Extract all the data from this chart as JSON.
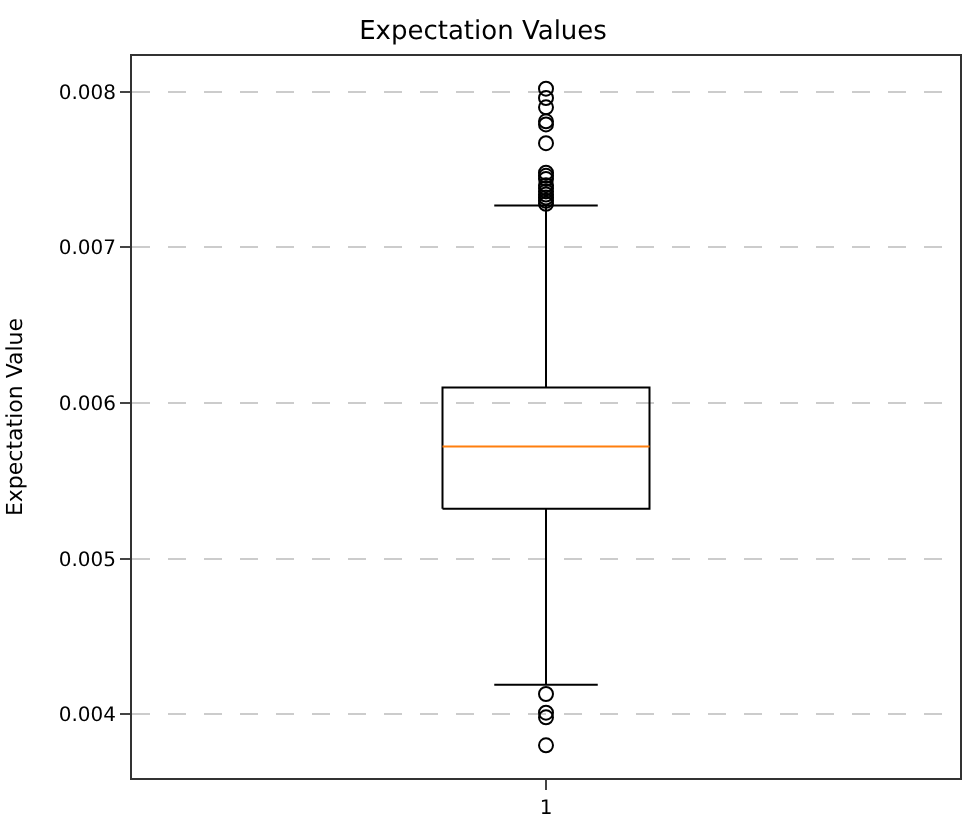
{
  "chart_data": {
    "type": "box",
    "title": "Expectation Values",
    "ylabel": "Expectation Value",
    "categories": [
      "1"
    ],
    "boxes": [
      {
        "low": 0.00419,
        "q1": 0.00532,
        "median": 0.00572,
        "q3": 0.0061,
        "high": 0.00727,
        "outliers": [
          0.00802,
          0.00796,
          0.0079,
          0.00781,
          0.00779,
          0.00767,
          0.00748,
          0.00746,
          0.00744,
          0.0074,
          0.00738,
          0.00736,
          0.00734,
          0.00732,
          0.0073,
          0.00728,
          0.00413,
          0.00401,
          0.00398,
          0.0038
        ]
      }
    ],
    "color": "#000000",
    "ylim": [
      0.00359,
      0.00823
    ],
    "yticks": [
      0.004,
      0.005,
      0.006,
      0.007,
      0.008
    ],
    "grid": "y",
    "marker": "circle"
  }
}
